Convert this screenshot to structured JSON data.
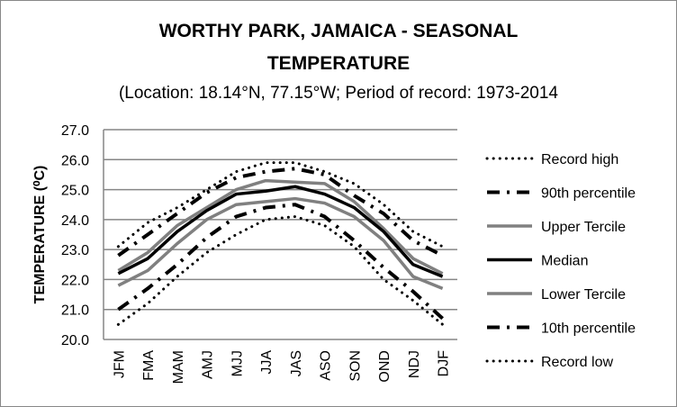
{
  "chart_data": {
    "type": "line",
    "title_line1": "WORTHY PARK, JAMAICA - SEASONAL",
    "title_line2": "TEMPERATURE",
    "subtitle": "(Location: 18.14°N, 77.15°W; Period of record: 1973-2014",
    "ylabel": "TEMPERATURE (⁰C)",
    "xlabel": "",
    "ylim": [
      20,
      27
    ],
    "yticks": [
      "20.0",
      "21.0",
      "22.0",
      "23.0",
      "24.0",
      "25.0",
      "26.0",
      "27.0"
    ],
    "categories": [
      "JFM",
      "FMA",
      "MAM",
      "AMJ",
      "MJJ",
      "JJA",
      "JAS",
      "ASO",
      "SON",
      "OND",
      "NDJ",
      "DJF"
    ],
    "grid": true,
    "legend_position": "right",
    "series": [
      {
        "name": "Record high",
        "style": "dotted",
        "color": "#000000",
        "values": [
          23.1,
          23.9,
          24.4,
          25.0,
          25.6,
          25.9,
          25.9,
          25.6,
          25.2,
          24.5,
          23.6,
          23.1
        ]
      },
      {
        "name": "90th percentile",
        "style": "dashdot",
        "color": "#000000",
        "values": [
          22.8,
          23.5,
          24.2,
          24.9,
          25.4,
          25.6,
          25.7,
          25.5,
          24.8,
          24.2,
          23.3,
          22.8
        ]
      },
      {
        "name": "Upper Tercile",
        "style": "solid",
        "color": "#808080",
        "values": [
          22.3,
          22.9,
          23.8,
          24.4,
          25.0,
          25.3,
          25.25,
          25.2,
          24.6,
          23.7,
          22.7,
          22.2
        ]
      },
      {
        "name": "Median",
        "style": "solid",
        "color": "#000000",
        "values": [
          22.2,
          22.7,
          23.6,
          24.3,
          24.85,
          24.95,
          25.1,
          24.85,
          24.4,
          23.6,
          22.5,
          22.1
        ]
      },
      {
        "name": "Lower Tercile",
        "style": "solid",
        "color": "#808080",
        "values": [
          21.8,
          22.3,
          23.2,
          24.0,
          24.5,
          24.6,
          24.7,
          24.55,
          24.1,
          23.3,
          22.1,
          21.7
        ]
      },
      {
        "name": "10th percentile",
        "style": "dashdot",
        "color": "#000000",
        "values": [
          21.0,
          21.7,
          22.5,
          23.4,
          24.1,
          24.4,
          24.5,
          24.1,
          23.3,
          22.4,
          21.6,
          20.7
        ]
      },
      {
        "name": "Record low",
        "style": "dotted",
        "color": "#000000",
        "values": [
          20.5,
          21.2,
          22.1,
          22.9,
          23.5,
          24.0,
          24.1,
          23.8,
          23.1,
          22.0,
          21.3,
          20.5
        ]
      }
    ]
  }
}
